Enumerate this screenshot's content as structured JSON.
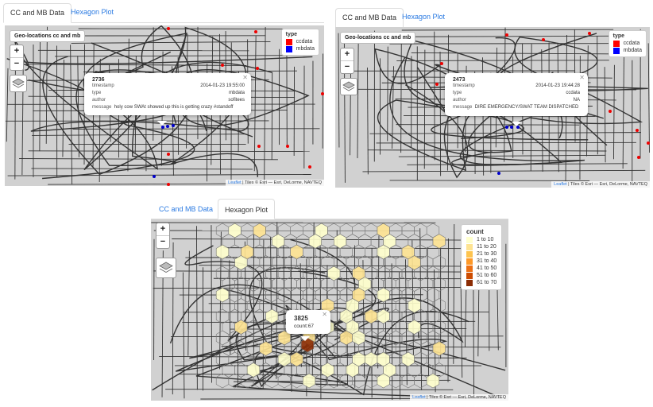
{
  "panel1": {
    "tabs": [
      {
        "label": "CC and MB Data"
      },
      {
        "label": "Hexagon Plot"
      }
    ],
    "map_title": "Geo-locations cc and mb",
    "zoom_in": "+",
    "zoom_out": "−",
    "legend": {
      "title": "type",
      "items": [
        {
          "label": "ccdata",
          "color": "#ff0000"
        },
        {
          "label": "mbdata",
          "color": "#0000ff"
        }
      ]
    },
    "popup": {
      "id": "2736",
      "rows": [
        {
          "k": "timestamp",
          "v": "2014-01-23 19:55:00"
        },
        {
          "k": "type",
          "v": "mbdata"
        },
        {
          "k": "author",
          "v": "sofitees"
        },
        {
          "k": "message",
          "v": "holy cow SWAt showed up this is getting crazy #standoff"
        }
      ]
    },
    "attribution": {
      "leaflet": "Leaflet",
      "rest": " | Tiles © Esri — Esri, DeLorme, NAVTEQ"
    }
  },
  "panel2": {
    "tabs": [
      {
        "label": "CC and MB Data"
      },
      {
        "label": "Hexagon Plot"
      }
    ],
    "map_title": "Geo-locations cc and mb",
    "zoom_in": "+",
    "zoom_out": "−",
    "legend": {
      "title": "type",
      "items": [
        {
          "label": "ccdata",
          "color": "#ff0000"
        },
        {
          "label": "mbdata",
          "color": "#0000ff"
        }
      ]
    },
    "popup": {
      "id": "2473",
      "rows": [
        {
          "k": "timestamp",
          "v": "2014-01-23 19:44:28"
        },
        {
          "k": "type",
          "v": "ccdata"
        },
        {
          "k": "author",
          "v": "NA"
        },
        {
          "k": "message",
          "v": "DIRE EMERGENCY/SWAT TEAM DISPATCHED"
        }
      ]
    },
    "attribution": {
      "leaflet": "Leaflet",
      "rest": " | Tiles © Esri — Esri, DeLorme, NAVTEQ"
    }
  },
  "panel3": {
    "tabs": [
      {
        "label": "CC and MB Data"
      },
      {
        "label": "Hexagon Plot"
      }
    ],
    "zoom_in": "+",
    "zoom_out": "−",
    "legend": {
      "title": "count",
      "items": [
        {
          "label": "1 to 10",
          "color": "#ffffcc"
        },
        {
          "label": "11 to 20",
          "color": "#fee391"
        },
        {
          "label": "21 to 30",
          "color": "#fec44f"
        },
        {
          "label": "31 to 40",
          "color": "#fe9929"
        },
        {
          "label": "41 to 50",
          "color": "#ec7014"
        },
        {
          "label": "51 to 60",
          "color": "#cc4c02"
        },
        {
          "label": "61 to 70",
          "color": "#8c2d04"
        }
      ]
    },
    "popup": {
      "id": "3825",
      "count_label": "count:",
      "count_value": "67"
    },
    "attribution": {
      "leaflet": "Leaflet",
      "rest": " | Tiles © Esri — Esri, DeLorme, NAVTEQ"
    }
  }
}
